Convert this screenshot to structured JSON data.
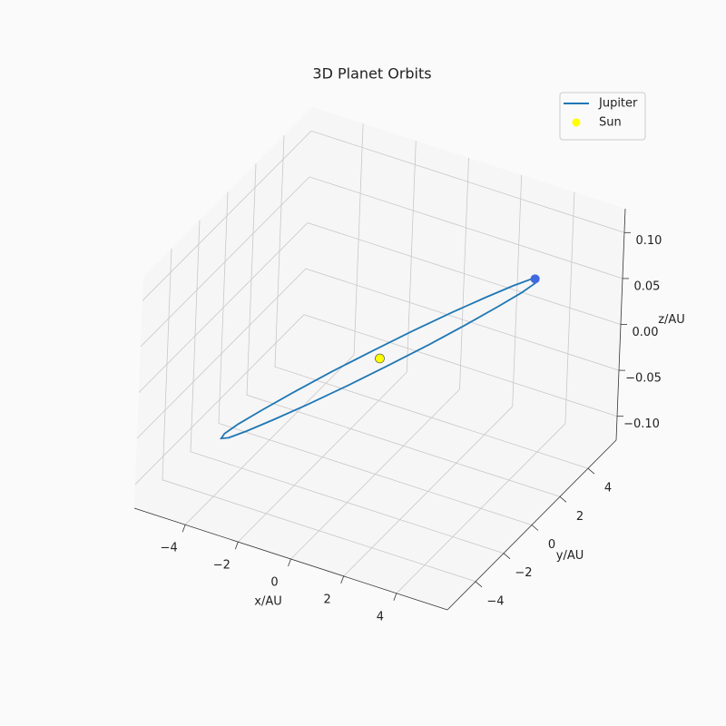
{
  "chart_data": {
    "type": "line3d",
    "title": "3D Planet Orbits",
    "xlabel": "x/AU",
    "ylabel": "y/AU",
    "zlabel": "z/AU",
    "xlim": [
      -5.93,
      5.93
    ],
    "ylim": [
      -6.0,
      6.0
    ],
    "zlim": [
      -0.126,
      0.126
    ],
    "xticks": [
      {
        "value": -4,
        "label": "−4"
      },
      {
        "value": -2,
        "label": "−2"
      },
      0,
      2,
      4
    ],
    "yticks": [
      {
        "value": -4,
        "label": "−4"
      },
      {
        "value": -2,
        "label": "−2"
      },
      0,
      2,
      4
    ],
    "zticks": [
      {
        "value": -0.1,
        "label": "−0.10"
      },
      {
        "value": -0.05,
        "label": "−0.05"
      },
      {
        "value": 0,
        "label": "0.00"
      },
      {
        "value": 0.05,
        "label": "0.05"
      },
      {
        "value": 0.1,
        "label": "0.10"
      }
    ],
    "grid": true,
    "legend": "upper right",
    "series": [
      {
        "name": "Jupiter",
        "type": "line",
        "color": "#1f77b4",
        "x": [
          5.2,
          5.02,
          4.5,
          3.68,
          2.6,
          1.35,
          0,
          -1.35,
          -2.6,
          -3.68,
          -4.5,
          -5.02,
          -5.2,
          -5.02,
          -4.5,
          -3.68,
          -2.6,
          -1.35,
          0,
          1.35,
          2.6,
          3.68,
          4.5,
          5.02,
          5.2
        ],
        "y": [
          0,
          1.35,
          2.6,
          3.68,
          4.5,
          5.02,
          5.2,
          5.02,
          4.5,
          3.68,
          2.6,
          1.35,
          0,
          -1.35,
          -2.6,
          -3.68,
          -4.5,
          -5.02,
          -5.2,
          -5.02,
          -4.5,
          -3.68,
          -2.6,
          -1.35,
          0
        ],
        "z": [
          0.12,
          0.108,
          0.089,
          0.064,
          0.034,
          0.002,
          -0.03,
          -0.06,
          -0.086,
          -0.106,
          -0.119,
          -0.124,
          -0.12,
          -0.108,
          -0.089,
          -0.064,
          -0.034,
          -0.002,
          0.03,
          0.06,
          0.086,
          0.106,
          0.119,
          0.124,
          0.12
        ]
      },
      {
        "name": "Sun",
        "type": "scatter",
        "color": "yellow",
        "x": [
          0
        ],
        "y": [
          0
        ],
        "z": [
          0
        ]
      },
      {
        "type": "scatter",
        "color": "#4169e1",
        "x": [
          4.04
        ],
        "y": [
          3.27
        ],
        "z": [
          0.074
        ]
      }
    ]
  }
}
